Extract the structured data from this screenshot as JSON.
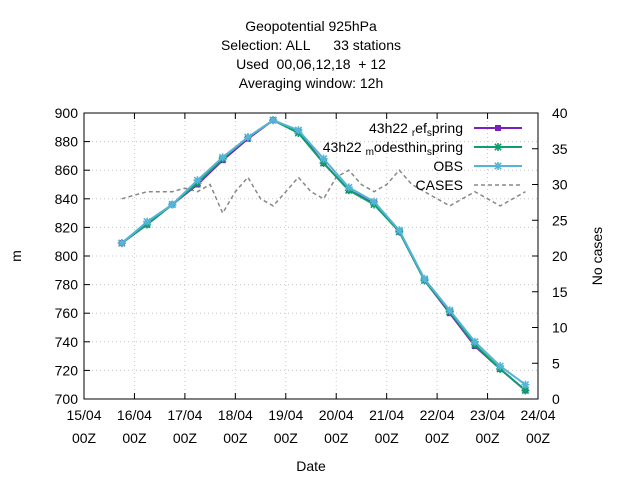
{
  "chart_data": {
    "type": "line",
    "title_lines": [
      "Geopotential 925hPa",
      "Selection: ALL      33 stations",
      "Used  00,06,12,18  + 12",
      "Averaging window: 12h"
    ],
    "xlabel": "Date",
    "ylabel": "m",
    "y2label": "No cases",
    "x_ticks": [
      {
        "x": 0,
        "line1": "15/04",
        "line2": "00Z"
      },
      {
        "x": 1,
        "line1": "16/04",
        "line2": "00Z"
      },
      {
        "x": 2,
        "line1": "17/04",
        "line2": "00Z"
      },
      {
        "x": 3,
        "line1": "18/04",
        "line2": "00Z"
      },
      {
        "x": 4,
        "line1": "19/04",
        "line2": "00Z"
      },
      {
        "x": 5,
        "line1": "20/04",
        "line2": "00Z"
      },
      {
        "x": 6,
        "line1": "21/04",
        "line2": "00Z"
      },
      {
        "x": 7,
        "line1": "22/04",
        "line2": "00Z"
      },
      {
        "x": 8,
        "line1": "23/04",
        "line2": "00Z"
      },
      {
        "x": 9,
        "line1": "24/04",
        "line2": "00Z"
      }
    ],
    "xlim": [
      0,
      9
    ],
    "ylim": [
      700,
      900
    ],
    "y_ticks": [
      "700",
      "720",
      "740",
      "760",
      "780",
      "800",
      "820",
      "840",
      "860",
      "880",
      "900"
    ],
    "y2lim": [
      0,
      40
    ],
    "y2_ticks": [
      "0",
      "5",
      "10",
      "15",
      "20",
      "25",
      "30",
      "35",
      "40"
    ],
    "legend_position": "top-right",
    "series": [
      {
        "name": "43h22 ref spring",
        "legend_parts": [
          [
            "43h22 ",
            "normal"
          ],
          [
            "r",
            "sub"
          ],
          [
            "ef",
            "normal"
          ],
          [
            "s",
            "sub"
          ],
          [
            "pring",
            "normal"
          ]
        ],
        "color": "#7b1fbf",
        "marker": "square",
        "dashed": false,
        "axis": "y",
        "x": [
          0.75,
          1.25,
          1.75,
          2.25,
          2.75,
          3.25,
          3.75,
          4.25,
          4.75,
          5.25,
          5.75,
          6.25,
          6.75,
          7.25,
          7.75,
          8.25,
          8.75
        ],
        "values": [
          809,
          822,
          836,
          850,
          867,
          882,
          895,
          887,
          865,
          846,
          837,
          817,
          783,
          760,
          737,
          721,
          706
        ]
      },
      {
        "name": "43h22 modesthin spring",
        "legend_parts": [
          [
            "43h22 ",
            "normal"
          ],
          [
            "m",
            "sub"
          ],
          [
            "odesthin",
            "normal"
          ],
          [
            "s",
            "sub"
          ],
          [
            "pring",
            "normal"
          ]
        ],
        "color": "#0f9e6e",
        "marker": "star",
        "dashed": false,
        "axis": "y",
        "x": [
          0.75,
          1.25,
          1.75,
          2.25,
          2.75,
          3.25,
          3.75,
          4.25,
          4.75,
          5.25,
          5.75,
          6.25,
          6.75,
          7.25,
          7.75,
          8.25,
          8.75
        ],
        "values": [
          809,
          822,
          836,
          851,
          868,
          883,
          895,
          886,
          865,
          846,
          836,
          817,
          783,
          761,
          738,
          721,
          706
        ]
      },
      {
        "name": "OBS",
        "legend_parts": [
          [
            "OBS",
            "normal"
          ]
        ],
        "color": "#56b4d6",
        "marker": "star",
        "dashed": false,
        "axis": "y",
        "x": [
          0.75,
          1.25,
          1.75,
          2.25,
          2.75,
          3.25,
          3.75,
          4.25,
          4.75,
          5.25,
          5.75,
          6.25,
          6.75,
          7.25,
          7.75,
          8.25,
          8.75
        ],
        "values": [
          809,
          824,
          836,
          853,
          869,
          883,
          895,
          888,
          868,
          848,
          838,
          818,
          784,
          762,
          740,
          723,
          710
        ]
      },
      {
        "name": "CASES",
        "legend_parts": [
          [
            "CASES",
            "normal"
          ]
        ],
        "color": "#888888",
        "marker": "none",
        "dashed": true,
        "axis": "y2",
        "x": [
          0.75,
          1.0,
          1.25,
          1.5,
          1.75,
          2.0,
          2.25,
          2.5,
          2.75,
          3.0,
          3.25,
          3.5,
          3.75,
          4.0,
          4.25,
          4.5,
          4.75,
          5.0,
          5.25,
          5.5,
          5.75,
          6.0,
          6.25,
          6.5,
          6.75,
          7.0,
          7.25,
          7.5,
          7.75,
          8.0,
          8.25,
          8.5,
          8.75
        ],
        "values": [
          28,
          28.5,
          29,
          29,
          29,
          29.5,
          29,
          30,
          26,
          29,
          31,
          28,
          27,
          29,
          31,
          29,
          28,
          31,
          32,
          30,
          29,
          30,
          32,
          30,
          29,
          28,
          27,
          28,
          29,
          28,
          27,
          28,
          29
        ]
      }
    ]
  }
}
